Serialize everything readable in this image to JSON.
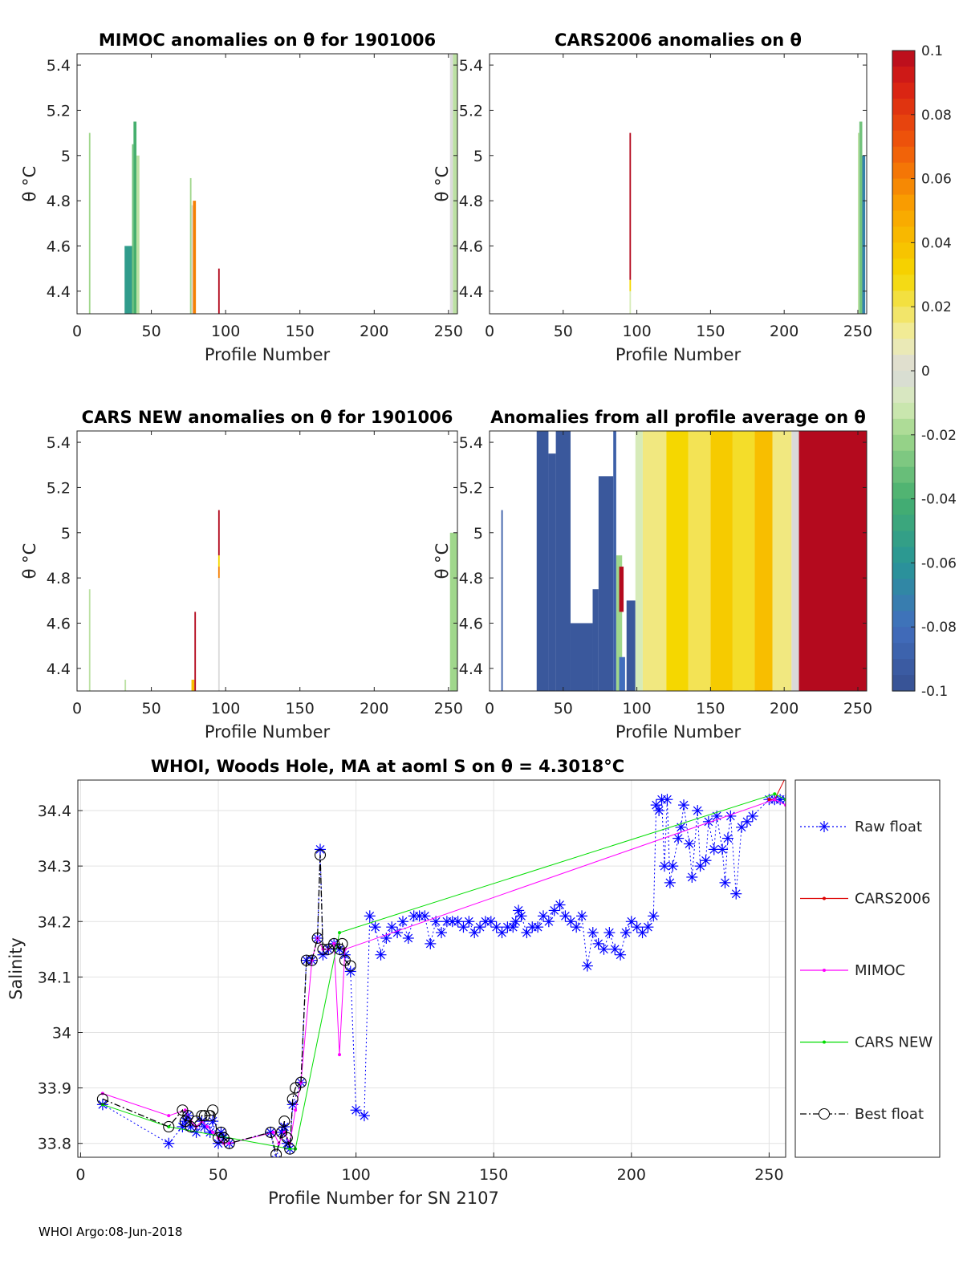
{
  "chart_data": [
    {
      "type": "heatmap",
      "title": "MIMOC anomalies on θ  for 1901006",
      "xlabel": "Profile Number",
      "ylabel": "θ °C",
      "xlim": [
        0,
        256
      ],
      "ylim": [
        4.3,
        5.45
      ],
      "xticks": [
        "0",
        "50",
        "100",
        "150",
        "200",
        "250"
      ],
      "yticks": [
        "4.4",
        "4.6",
        "4.8",
        "5",
        "5.2",
        "5.4"
      ],
      "patches": [
        {
          "x0": 8,
          "x1": 9,
          "y0": 4.3,
          "y1": 5.1,
          "anomaly": -0.02
        },
        {
          "x0": 32,
          "x1": 37,
          "y0": 4.3,
          "y1": 4.6,
          "anomaly": -0.055
        },
        {
          "x0": 37,
          "x1": 38,
          "y0": 4.3,
          "y1": 5.05,
          "anomaly": -0.03
        },
        {
          "x0": 38,
          "x1": 40,
          "y0": 4.3,
          "y1": 5.15,
          "anomaly": -0.04
        },
        {
          "x0": 40,
          "x1": 42,
          "y0": 4.3,
          "y1": 5.0,
          "anomaly": -0.015
        },
        {
          "x0": 76,
          "x1": 77,
          "y0": 4.3,
          "y1": 4.9,
          "anomaly": -0.02
        },
        {
          "x0": 77,
          "x1": 78,
          "y0": 4.3,
          "y1": 4.78,
          "anomaly": 0.0
        },
        {
          "x0": 78,
          "x1": 80,
          "y0": 4.3,
          "y1": 4.8,
          "anomaly": 0.06
        },
        {
          "x0": 95,
          "x1": 96,
          "y0": 4.3,
          "y1": 4.5,
          "anomaly": 0.1
        },
        {
          "x0": 251,
          "x1": 253,
          "y0": 4.3,
          "y1": 5.45,
          "anomaly": 0.0
        },
        {
          "x0": 253,
          "x1": 256,
          "y0": 4.3,
          "y1": 5.45,
          "anomaly": -0.015
        }
      ]
    },
    {
      "type": "heatmap",
      "title": "CARS2006 anomalies on θ",
      "xlabel": "Profile Number",
      "ylabel": "θ °C",
      "xlim": [
        0,
        256
      ],
      "ylim": [
        4.3,
        5.45
      ],
      "xticks": [
        "0",
        "50",
        "100",
        "150",
        "200",
        "250"
      ],
      "yticks": [
        "4.4",
        "4.6",
        "4.8",
        "5",
        "5.2",
        "5.4"
      ],
      "patches": [
        {
          "x0": 95,
          "x1": 96,
          "y0": 4.3,
          "y1": 4.4,
          "anomaly": -0.01
        },
        {
          "x0": 95,
          "x1": 96,
          "y0": 4.4,
          "y1": 4.45,
          "anomaly": 0.03
        },
        {
          "x0": 95,
          "x1": 96,
          "y0": 4.45,
          "y1": 5.1,
          "anomaly": 0.1
        },
        {
          "x0": 250,
          "x1": 251,
          "y0": 4.3,
          "y1": 5.1,
          "anomaly": -0.015
        },
        {
          "x0": 251,
          "x1": 253,
          "y0": 4.3,
          "y1": 5.15,
          "anomaly": -0.03
        },
        {
          "x0": 253,
          "x1": 255,
          "y0": 4.3,
          "y1": 5.0,
          "anomaly": -0.07
        }
      ]
    },
    {
      "type": "heatmap",
      "title": "CARS NEW anomalies on θ for 1901006",
      "xlabel": "Profile Number",
      "ylabel": "θ °C",
      "xlim": [
        0,
        256
      ],
      "ylim": [
        4.3,
        5.45
      ],
      "xticks": [
        "0",
        "50",
        "100",
        "150",
        "200",
        "250"
      ],
      "yticks": [
        "4.4",
        "4.6",
        "4.8",
        "5",
        "5.2",
        "5.4"
      ],
      "patches": [
        {
          "x0": 8,
          "x1": 9,
          "y0": 4.3,
          "y1": 4.75,
          "anomaly": -0.015
        },
        {
          "x0": 32,
          "x1": 33,
          "y0": 4.3,
          "y1": 4.35,
          "anomaly": -0.015
        },
        {
          "x0": 77,
          "x1": 79,
          "y0": 4.3,
          "y1": 4.35,
          "anomaly": 0.04
        },
        {
          "x0": 79,
          "x1": 80,
          "y0": 4.3,
          "y1": 4.65,
          "anomaly": 0.1
        },
        {
          "x0": 95,
          "x1": 96,
          "y0": 4.3,
          "y1": 4.8,
          "anomaly": 0.0
        },
        {
          "x0": 95,
          "x1": 96,
          "y0": 4.8,
          "y1": 4.85,
          "anomaly": 0.06
        },
        {
          "x0": 95,
          "x1": 96,
          "y0": 4.85,
          "y1": 4.9,
          "anomaly": 0.03
        },
        {
          "x0": 95,
          "x1": 96,
          "y0": 4.9,
          "y1": 5.1,
          "anomaly": 0.1
        },
        {
          "x0": 251,
          "x1": 256,
          "y0": 4.3,
          "y1": 5.0,
          "anomaly": -0.02
        }
      ]
    },
    {
      "type": "heatmap",
      "title": "Anomalies from all profile average on θ",
      "xlabel": "Profile Number",
      "ylabel": "θ °C",
      "xlim": [
        0,
        256
      ],
      "ylim": [
        4.3,
        5.45
      ],
      "xticks": [
        "0",
        "50",
        "100",
        "150",
        "200",
        "250"
      ],
      "yticks": [
        "4.4",
        "4.6",
        "4.8",
        "5",
        "5.2",
        "5.4"
      ],
      "patches": [
        {
          "x0": 8,
          "x1": 9,
          "y0": 4.3,
          "y1": 5.1,
          "anomaly": -0.09
        },
        {
          "x0": 32,
          "x1": 40,
          "y0": 4.3,
          "y1": 5.45,
          "anomaly": -0.095
        },
        {
          "x0": 40,
          "x1": 45,
          "y0": 4.3,
          "y1": 5.35,
          "anomaly": -0.095
        },
        {
          "x0": 45,
          "x1": 55,
          "y0": 4.3,
          "y1": 5.45,
          "anomaly": -0.095
        },
        {
          "x0": 55,
          "x1": 70,
          "y0": 4.3,
          "y1": 4.6,
          "anomaly": -0.095
        },
        {
          "x0": 70,
          "x1": 74,
          "y0": 4.3,
          "y1": 4.75,
          "anomaly": -0.095
        },
        {
          "x0": 74,
          "x1": 84,
          "y0": 4.3,
          "y1": 5.25,
          "anomaly": -0.095
        },
        {
          "x0": 84,
          "x1": 86,
          "y0": 4.3,
          "y1": 5.45,
          "anomaly": -0.09
        },
        {
          "x0": 86,
          "x1": 90,
          "y0": 4.3,
          "y1": 4.9,
          "anomaly": -0.02
        },
        {
          "x0": 88,
          "x1": 91,
          "y0": 4.65,
          "y1": 4.85,
          "anomaly": 0.1
        },
        {
          "x0": 88,
          "x1": 92,
          "y0": 4.3,
          "y1": 4.45,
          "anomaly": -0.08
        },
        {
          "x0": 93,
          "x1": 99,
          "y0": 4.3,
          "y1": 4.7,
          "anomaly": -0.095
        },
        {
          "x0": 99,
          "x1": 104,
          "y0": 4.3,
          "y1": 5.45,
          "anomaly": -0.01
        },
        {
          "x0": 104,
          "x1": 120,
          "y0": 4.3,
          "y1": 5.45,
          "anomaly": 0.015
        },
        {
          "x0": 120,
          "x1": 135,
          "y0": 4.3,
          "y1": 5.45,
          "anomaly": 0.03
        },
        {
          "x0": 135,
          "x1": 150,
          "y0": 4.3,
          "y1": 5.45,
          "anomaly": 0.02
        },
        {
          "x0": 150,
          "x1": 165,
          "y0": 4.3,
          "y1": 5.45,
          "anomaly": 0.035
        },
        {
          "x0": 165,
          "x1": 180,
          "y0": 4.3,
          "y1": 5.45,
          "anomaly": 0.025
        },
        {
          "x0": 180,
          "x1": 192,
          "y0": 4.3,
          "y1": 5.45,
          "anomaly": 0.04
        },
        {
          "x0": 192,
          "x1": 205,
          "y0": 4.3,
          "y1": 5.45,
          "anomaly": 0.015
        },
        {
          "x0": 205,
          "x1": 210,
          "y0": 4.3,
          "y1": 5.45,
          "anomaly": 0.0
        },
        {
          "x0": 210,
          "x1": 256,
          "y0": 4.3,
          "y1": 5.45,
          "anomaly": 0.1
        }
      ]
    },
    {
      "type": "line",
      "title": "WHOI, Woods Hole, MA at aoml S on θ = 4.3018°C",
      "xlabel": "Profile Number for SN 2107",
      "ylabel": "Salinity",
      "xlim": [
        -1,
        256
      ],
      "ylim": [
        33.775,
        34.455
      ],
      "xticks": [
        "0",
        "50",
        "100",
        "150",
        "200",
        "250"
      ],
      "yticks": [
        "33.8",
        "33.9",
        "34",
        "34.1",
        "34.2",
        "34.3",
        "34.4"
      ],
      "legend": [
        "Raw float",
        "CARS2006",
        "MIMOC",
        "CARS NEW",
        "Best float"
      ],
      "series": [
        {
          "name": "Raw float",
          "color": "#0000ff",
          "x": [
            8,
            32,
            37,
            38,
            39,
            40,
            42,
            44,
            45,
            47,
            48,
            50,
            51,
            52,
            54,
            69,
            71,
            73,
            74,
            75,
            76,
            77,
            80,
            82,
            84,
            86,
            87,
            88,
            90,
            92,
            94,
            96,
            98,
            100,
            103,
            105,
            107,
            109,
            111,
            113,
            115,
            117,
            119,
            121,
            123,
            125,
            127,
            129,
            131,
            133,
            135,
            137,
            139,
            141,
            143,
            145,
            147,
            149,
            151,
            153,
            155,
            157,
            158,
            159,
            160,
            162,
            164,
            166,
            168,
            170,
            172,
            174,
            176,
            178,
            180,
            182,
            184,
            186,
            188,
            190,
            192,
            194,
            196,
            198,
            200,
            202,
            204,
            206,
            208,
            209,
            210,
            211,
            212,
            213,
            214,
            215,
            217,
            218,
            219,
            221,
            222,
            224,
            225,
            227,
            228,
            230,
            231,
            233,
            234,
            235,
            236,
            238,
            240,
            242,
            244,
            250,
            252,
            254,
            256
          ],
          "y": [
            33.87,
            33.8,
            33.83,
            33.84,
            33.85,
            33.83,
            33.82,
            33.84,
            33.83,
            33.82,
            33.84,
            33.8,
            33.82,
            33.81,
            33.8,
            33.82,
            33.77,
            33.82,
            33.83,
            33.8,
            33.79,
            33.87,
            33.91,
            34.13,
            34.13,
            34.17,
            34.33,
            34.14,
            34.15,
            34.16,
            34.15,
            34.14,
            34.11,
            33.86,
            33.85,
            34.21,
            34.19,
            34.14,
            34.17,
            34.19,
            34.18,
            34.2,
            34.17,
            34.21,
            34.21,
            34.21,
            34.16,
            34.2,
            34.18,
            34.2,
            34.2,
            34.2,
            34.19,
            34.2,
            34.18,
            34.19,
            34.2,
            34.2,
            34.19,
            34.18,
            34.19,
            34.19,
            34.2,
            34.22,
            34.21,
            34.18,
            34.19,
            34.19,
            34.21,
            34.2,
            34.22,
            34.23,
            34.21,
            34.2,
            34.19,
            34.21,
            34.12,
            34.18,
            34.16,
            34.15,
            34.18,
            34.15,
            34.14,
            34.18,
            34.2,
            34.19,
            34.18,
            34.19,
            34.21,
            34.41,
            34.4,
            34.42,
            34.3,
            34.42,
            34.27,
            34.3,
            34.35,
            34.37,
            34.41,
            34.34,
            34.28,
            34.4,
            34.3,
            34.31,
            34.38,
            34.33,
            34.39,
            34.33,
            34.27,
            34.35,
            34.39,
            34.25,
            34.37,
            34.38,
            34.39,
            34.42,
            34.42,
            34.42,
            34.42
          ]
        },
        {
          "name": "CARS2006",
          "color": "#dd0000",
          "x": [
            250,
            252,
            256
          ],
          "y": [
            34.42,
            34.42,
            34.46
          ]
        },
        {
          "name": "MIMOC",
          "color": "#ff00ff",
          "x": [
            8,
            32,
            38,
            40,
            42,
            44,
            46,
            48,
            50,
            52,
            54,
            70,
            72,
            74,
            76,
            78,
            80,
            84,
            86,
            88,
            90,
            92,
            94,
            96,
            252,
            256
          ],
          "y": [
            33.89,
            33.85,
            33.86,
            33.84,
            33.83,
            33.84,
            33.83,
            33.82,
            33.81,
            33.8,
            33.8,
            33.82,
            33.8,
            33.82,
            33.8,
            33.86,
            33.91,
            34.13,
            34.17,
            34.15,
            34.15,
            34.16,
            33.96,
            34.15,
            34.42,
            34.41
          ]
        },
        {
          "name": "CARS NEW",
          "color": "#00dd00",
          "x": [
            8,
            32,
            76,
            78,
            94,
            252,
            256
          ],
          "y": [
            33.87,
            33.83,
            33.79,
            33.79,
            34.18,
            34.43,
            34.42
          ]
        },
        {
          "name": "Best float",
          "color": "#000000",
          "x": [
            8,
            32,
            37,
            38,
            39,
            40,
            42,
            44,
            45,
            47,
            48,
            50,
            51,
            52,
            54,
            69,
            71,
            73,
            74,
            75,
            76,
            77,
            78,
            80,
            82,
            84,
            86,
            87,
            88,
            90,
            92,
            94,
            95,
            96,
            98
          ],
          "y": [
            33.88,
            33.83,
            33.86,
            33.84,
            33.85,
            33.83,
            33.84,
            33.85,
            33.85,
            33.85,
            33.86,
            33.81,
            33.82,
            33.81,
            33.8,
            33.82,
            33.78,
            33.82,
            33.84,
            33.81,
            33.79,
            33.88,
            33.9,
            33.91,
            34.13,
            34.13,
            34.17,
            34.32,
            34.15,
            34.15,
            34.16,
            34.15,
            34.16,
            34.13,
            34.12
          ]
        }
      ]
    }
  ],
  "colorbar": {
    "ticks": [
      "0.1",
      "0.08",
      "0.06",
      "0.04",
      "0.02",
      "0",
      "-0.02",
      "-0.04",
      "-0.06",
      "-0.08",
      "-0.1"
    ],
    "range": [
      -0.1,
      0.1
    ]
  },
  "footer": "WHOI Argo:08-Jun-2018"
}
